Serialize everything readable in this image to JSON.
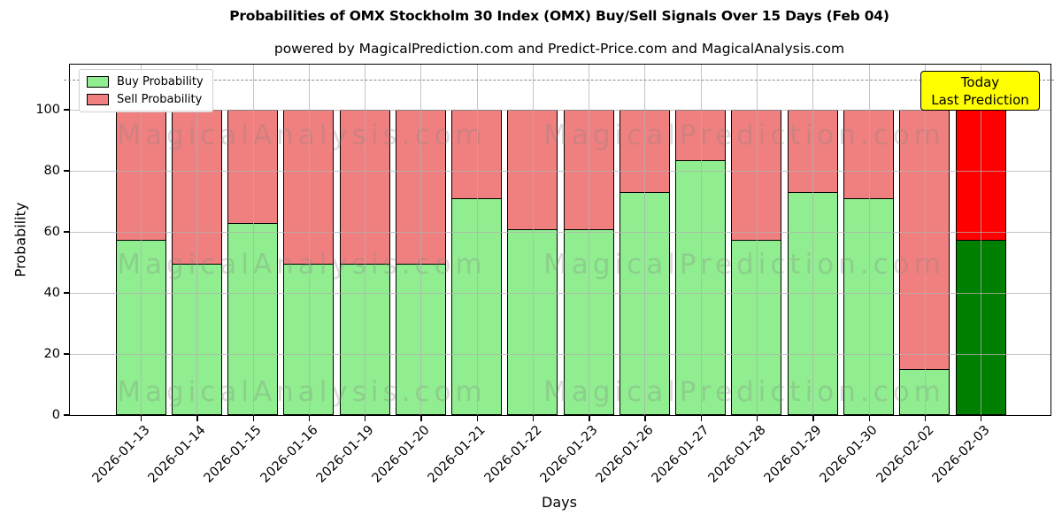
{
  "title": "Probabilities of OMX Stockholm 30 Index (OMX) Buy/Sell Signals Over 15 Days (Feb 04)",
  "subtitle": "powered by MagicalPrediction.com and Predict-Price.com and MagicalAnalysis.com",
  "legend": {
    "buy_label": "Buy Probability",
    "sell_label": "Sell Probability"
  },
  "annotation_box": {
    "line1": "Today",
    "line2": "Last Prediction",
    "bg_color": "#ffff00"
  },
  "watermarks": {
    "left": "MagicalAnalysis.com",
    "right": "MagicalPrediction.com"
  },
  "colors": {
    "buy": "#90ee90",
    "sell": "#f08080",
    "today_buy": "#008000",
    "today_sell": "#ff0000",
    "bar_edge": "#000000",
    "grid": "#b0b0b0",
    "dashed_line": "#8a8a8a",
    "annotation_bg": "#ffff00"
  },
  "chart_data": {
    "type": "bar",
    "stacked": true,
    "title": "Probabilities of OMX Stockholm 30 Index (OMX) Buy/Sell Signals Over 15 Days (Feb 04)",
    "xlabel": "Days",
    "ylabel": "Probability",
    "categories": [
      "2026-01-13",
      "2026-01-14",
      "2026-01-15",
      "2026-01-16",
      "2026-01-19",
      "2026-01-20",
      "2026-01-21",
      "2026-01-22",
      "2026-01-23",
      "2026-01-26",
      "2026-01-27",
      "2026-01-28",
      "2026-01-29",
      "2026-01-30",
      "2026-02-02",
      "2026-02-03"
    ],
    "series": [
      {
        "name": "Buy Probability",
        "color": "#90ee90",
        "values": [
          57.5,
          49.5,
          63,
          49.5,
          49.5,
          49.5,
          71,
          61,
          61,
          73,
          83.5,
          57.5,
          73,
          71,
          15,
          57.5
        ]
      },
      {
        "name": "Sell Probability",
        "color": "#f08080",
        "values": [
          42.5,
          50.5,
          37,
          50.5,
          50.5,
          50.5,
          29,
          39,
          39,
          27,
          16.5,
          42.5,
          27,
          29,
          85,
          42.5
        ]
      }
    ],
    "today_index": 15,
    "today_colors": {
      "buy": "#008000",
      "sell": "#ff0000"
    },
    "yticks": [
      0,
      20,
      40,
      60,
      80,
      100
    ],
    "ylim": [
      0,
      114.8
    ],
    "dashed_line_y": 110,
    "grid": true,
    "legend_position": "upper left"
  }
}
